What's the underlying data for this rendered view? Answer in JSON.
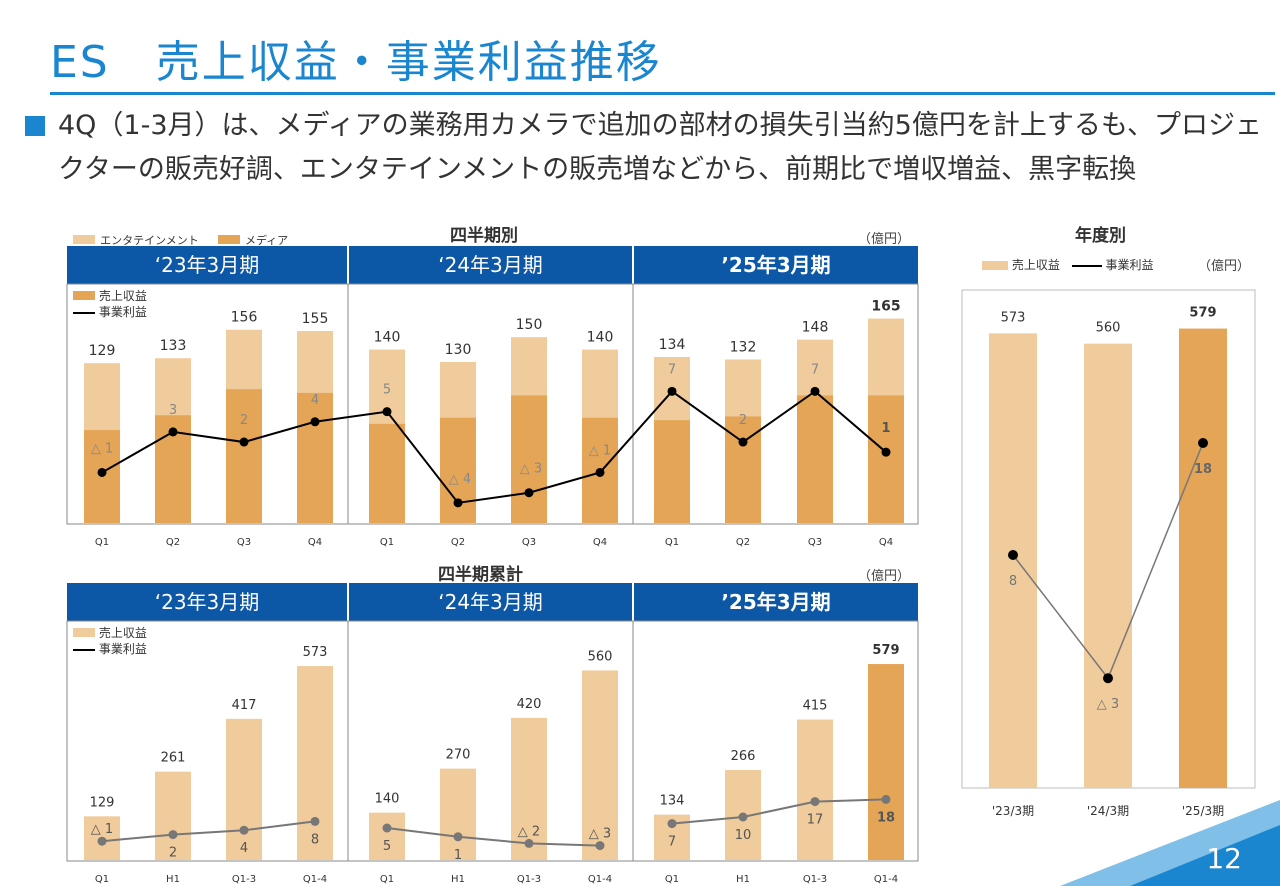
{
  "page": {
    "title": "ES　売上収益・事業利益推移",
    "bullet": "4Q（1-3月）は、メディアの業務用カメラで追加の部材の損失引当約5億円を計上するも、プロジェクターの販売好調、エンタテインメントの販売増などから、前期比で増収増益、黒字転換",
    "page_number": "12"
  },
  "quarterly": {
    "title": "四半期別",
    "unit": "（億円）",
    "legend_ent": "エンタテインメント",
    "legend_media": "メディア",
    "legend_rev": "売上収益",
    "legend_op": "事業利益",
    "periods": [
      "‘23年3月期",
      "‘24年3月期",
      "’25年3月期"
    ]
  },
  "cumulative": {
    "title": "四半期累計",
    "unit": "（億円）",
    "legend_rev": "売上収益",
    "legend_op": "事業利益",
    "periods": [
      "‘23年3月期",
      "‘24年3月期",
      "’25年3月期"
    ]
  },
  "annual": {
    "title": "年度別",
    "unit": "（億円）",
    "legend_rev": "売上収益",
    "legend_op": "事業利益"
  },
  "colors": {
    "brand_blue": "#1a86cf",
    "header_blue": "#0d57a7",
    "light_bar": "#f0cb9b",
    "dark_bar": "#e5a557",
    "line": "#000000",
    "gray_line": "#777777"
  },
  "chart_data": [
    {
      "id": "quarterly",
      "type": "bar",
      "title": "四半期別",
      "categories": [
        "Q1",
        "Q2",
        "Q3",
        "Q4",
        "Q1",
        "Q2",
        "Q3",
        "Q4",
        "Q1",
        "Q2",
        "Q3",
        "Q4"
      ],
      "series": [
        {
          "name": "売上収益",
          "values": [
            129,
            133,
            156,
            155,
            140,
            130,
            150,
            140,
            134,
            132,
            148,
            165
          ],
          "labels": [
            "129",
            "133",
            "156",
            "155",
            "140",
            "130",
            "150",
            "140",
            "134",
            "132",
            "148",
            "165"
          ]
        },
        {
          "name": "メディア",
          "values": [
            75,
            87,
            108,
            105,
            80,
            85,
            103,
            85,
            83,
            86,
            103,
            103
          ]
        },
        {
          "name": "事業利益",
          "type": "line",
          "values": [
            -1,
            3,
            2,
            4,
            5,
            -4,
            -3,
            -1,
            7,
            2,
            7,
            1
          ],
          "labels": [
            "△ 1",
            "3",
            "2",
            "4",
            "5",
            "△ 4",
            "△ 3",
            "△ 1",
            "7",
            "2",
            "7",
            "1"
          ]
        }
      ],
      "ylim": [
        0,
        180
      ],
      "op_ylim": [
        -5,
        17
      ]
    },
    {
      "id": "cumulative",
      "type": "bar",
      "title": "四半期累計",
      "categories": [
        "Q1",
        "H1",
        "Q1-3",
        "Q1-4",
        "Q1",
        "H1",
        "Q1-3",
        "Q1-4",
        "Q1",
        "H1",
        "Q1-3",
        "Q1-4"
      ],
      "series": [
        {
          "name": "売上収益",
          "values": [
            129,
            261,
            417,
            573,
            140,
            270,
            420,
            560,
            134,
            266,
            415,
            579
          ],
          "labels": [
            "129",
            "261",
            "417",
            "573",
            "140",
            "270",
            "420",
            "560",
            "134",
            "266",
            "415",
            "579"
          ]
        },
        {
          "name": "事業利益",
          "type": "line",
          "values": [
            -1,
            2,
            4,
            8,
            5,
            1,
            -2,
            -3,
            7,
            10,
            17,
            18
          ],
          "labels": [
            "△ 1",
            "2",
            "4",
            "8",
            "5",
            "1",
            "△ 2",
            "△ 3",
            "7",
            "10",
            "17",
            "18"
          ]
        }
      ],
      "ylim": [
        0,
        650
      ],
      "op_ylim": [
        -5,
        45
      ]
    },
    {
      "id": "annual",
      "type": "bar",
      "title": "年度別",
      "categories": [
        "'23/3期",
        "'24/3期",
        "'25/3期"
      ],
      "series": [
        {
          "name": "売上収益",
          "values": [
            573,
            560,
            579
          ],
          "labels": [
            "573",
            "560",
            "579"
          ]
        },
        {
          "name": "事業利益",
          "type": "line",
          "values": [
            8,
            -3,
            18
          ],
          "labels": [
            "8",
            "△ 3",
            "18"
          ]
        }
      ],
      "ylim": [
        0,
        615
      ],
      "op_ylim": [
        -7,
        34
      ]
    }
  ]
}
